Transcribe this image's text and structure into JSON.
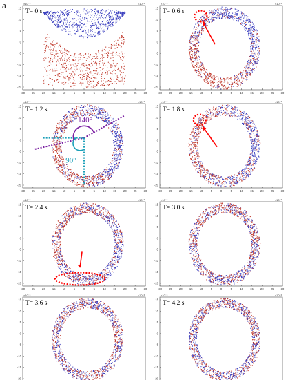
{
  "figure": {
    "panel_letter": "a",
    "axis_exponent": "×10⁻³",
    "x_ticks": [
      "-30",
      "-25",
      "-20",
      "-15",
      "-10",
      "-5",
      "0",
      "5",
      "10",
      "15",
      "20",
      "25",
      "30"
    ],
    "y_ticks": [
      "15",
      "10",
      "5",
      "0",
      "-5",
      "-10",
      "-15",
      "-20"
    ],
    "panels": [
      {
        "time_label": "T= 0 s"
      },
      {
        "time_label": "T= 0.6 s"
      },
      {
        "time_label": "T= 1.2 s"
      },
      {
        "time_label": "T= 1.8 s"
      },
      {
        "time_label": "T= 2.4 s"
      },
      {
        "time_label": "T= 3.0 s"
      },
      {
        "time_label": "T= 3.6 s"
      },
      {
        "time_label": "T= 4.2 s"
      }
    ],
    "angle_labels": [
      "140°",
      "90°"
    ],
    "colors": {
      "blue_particles": "#3b3fbf",
      "red_particles": "#c0392b",
      "highlight_red": "#ff0000",
      "purple_annotation": "#7a1fa2",
      "cyan_annotation": "#1a9fb8"
    }
  }
}
